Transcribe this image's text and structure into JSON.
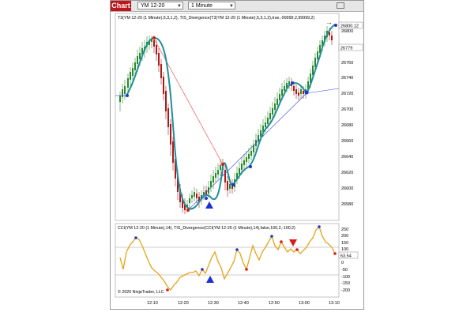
{
  "toolbar": {
    "chart_tab": "Chart",
    "instrument": "YM 12-20",
    "period": "1 Minute"
  },
  "price_panel": {
    "indicator_label": "T3(YM 12-20 (1 Minute),5,3,1,2), TIS_Divergence(T3(YM 12-20 (1 Minute),5,3,1,2),true,-99999,2,99999,2)",
    "last_price_badge": "26800.12",
    "last_price_badge2": "26779",
    "y_ticks": [
      "26800",
      "26760",
      "26740",
      "26720",
      "26700",
      "26680",
      "26660",
      "26640",
      "26620",
      "26600",
      "26580"
    ]
  },
  "cci_panel": {
    "indicator_label": "CCI(YM 12-20 (1 Minute),14), TIS_Divergence(CCI(YM 12-20 (1 Minute),14),false,100,2,-100,2)",
    "value_badge": "63.54",
    "y_ticks": [
      "250",
      "200",
      "150",
      "100",
      "50",
      "0",
      "-50",
      "-100",
      "-150",
      "-200"
    ],
    "copyright": "© 2020 NinjaTrader, LLC"
  },
  "time_axis": [
    "12:10",
    "12:20",
    "12:30",
    "12:40",
    "12:50",
    "13:00",
    "13:10"
  ],
  "colors": {
    "bull_candle": "#2a8a2a",
    "bear_candle": "#b01818",
    "t3_line": "#1f8f9a",
    "cci_line": "#e8a317",
    "divergence_up": "#2233cc",
    "divergence_down": "#e01818"
  }
}
